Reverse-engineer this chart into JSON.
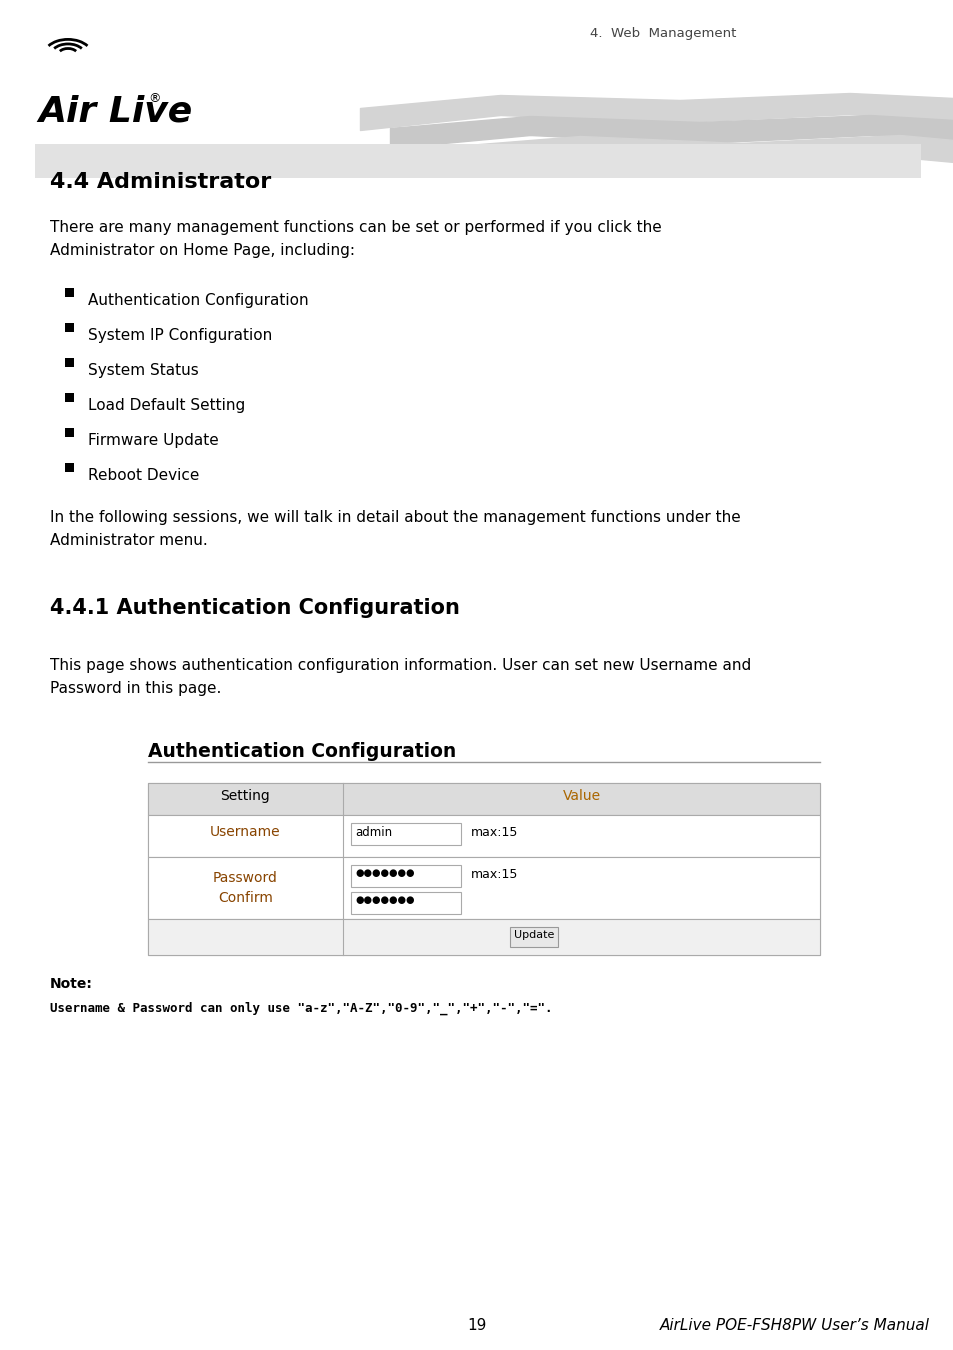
{
  "page_bg": "#ffffff",
  "header_text": "4.  Web  Management",
  "section_title": "4.4 Administrator",
  "section_bg": "#e2e2e2",
  "body_text1_line1": "There are many management functions can be set or performed if you click the",
  "body_text1_line2": "Administrator on Home Page, including:",
  "bullet_items": [
    "Authentication Configuration",
    "System IP Configuration",
    "System Status",
    "Load Default Setting",
    "Firmware Update",
    "Reboot Device"
  ],
  "body_text2_line1": "In the following sessions, we will talk in detail about the management functions under the",
  "body_text2_line2": "Administrator menu.",
  "subsection_title": "4.4.1 Authentication Configuration",
  "body_text3_line1": "This page shows authentication configuration information. User can set new Username and",
  "body_text3_line2": "Password in this page.",
  "table_title": "Authentication Configuration",
  "table_header_setting": "Setting",
  "table_header_value": "Value",
  "table_header_bg": "#dcdcdc",
  "table_row1_label": "Username",
  "table_row1_input": "admin",
  "table_row1_maxlabel": "max:15",
  "table_row2_label1": "Password",
  "table_row2_label2": "Confirm",
  "table_row2_dots1": "●●●●●●●",
  "table_row2_dots2": "●●●●●●●",
  "table_row2_maxlabel": "max:15",
  "table_btn": "Update",
  "table_border_color": "#aaaaaa",
  "footer_page": "19",
  "footer_manual": "AirLive POE-FSH8PW User’s Manual",
  "note_label": "Note:",
  "note_text": "Username & Password can only use \"a-z\",\"A-Z\",\"0-9\",\"_\",\"+\",\"-\",\"=\"."
}
